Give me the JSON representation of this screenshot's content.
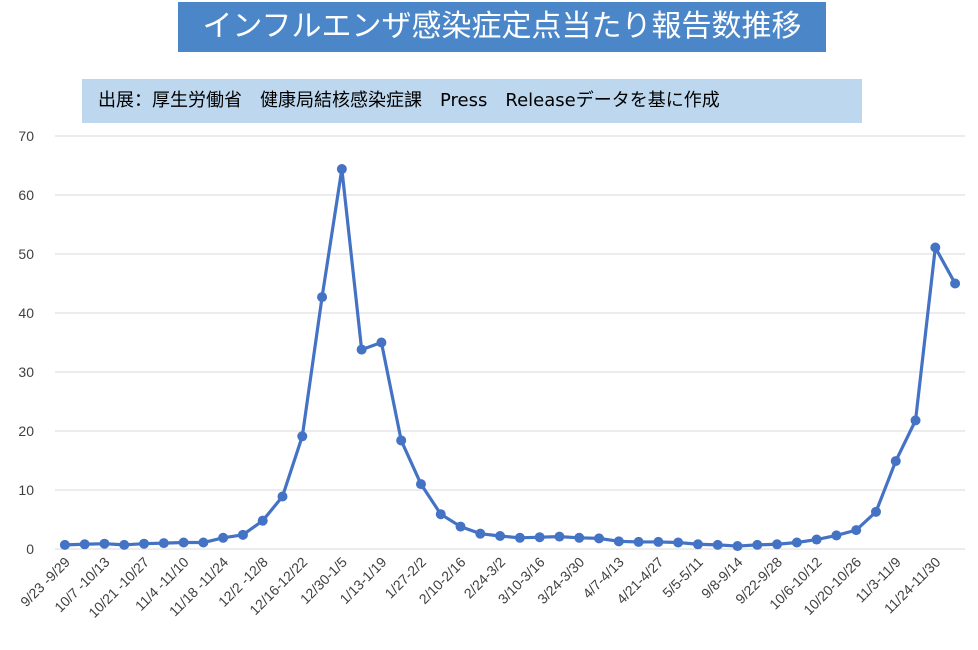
{
  "header": {
    "title": "インフルエンザ感染症定点当たり報告数推移",
    "source": "出展：厚生労働省　健康局結核感染症課　Press　Releaseデータを基に作成"
  },
  "colors": {
    "title_bg": "#4a86c8",
    "source_bg": "#bdd7ee",
    "line": "#4472c4",
    "grid": "#d9d9d9"
  },
  "chart_data": {
    "type": "line",
    "title": "インフルエンザ感染症定点当たり報告数推移",
    "ylim": [
      0,
      70
    ],
    "yticks": [
      0,
      10,
      20,
      30,
      40,
      50,
      60,
      70
    ],
    "grid": true,
    "xtick_labels": [
      "9/23 -9/29",
      "10/7 -10/13",
      "10/21 -10/27",
      "11/4 -11/10",
      "11/18 -11/24",
      "12/2 -12/8",
      "12/16-12/22",
      "12/30-1/5",
      "1/13-1/19",
      "1/27-2/2",
      "2/10-2/16",
      "2/24-3/2",
      "3/10-3/16",
      "3/24-3/30",
      "4/7-4/13",
      "4/21-4/27",
      "5/5-5/11",
      "9/8-9/14",
      "9/22-9/28",
      "10/6-10/12",
      "10/20-10/26",
      "11/3-11/9",
      "11/24-11/30"
    ],
    "series": [
      {
        "values": [
          0.7,
          0.8,
          0.9,
          0.7,
          0.9,
          1.0,
          1.1,
          1.1,
          1.9,
          2.4,
          4.8,
          8.9,
          19.1,
          42.7,
          64.4,
          33.8,
          35.0,
          18.4,
          11.0,
          5.9,
          3.8,
          2.6,
          2.2,
          1.9,
          2.0,
          2.1,
          1.9,
          1.8,
          1.3,
          1.2,
          1.2,
          1.1,
          0.8,
          0.7,
          0.5,
          0.7,
          0.8,
          1.1,
          1.6,
          2.3,
          3.2,
          6.3,
          14.9,
          21.8,
          51.1,
          45.0
        ]
      }
    ]
  }
}
